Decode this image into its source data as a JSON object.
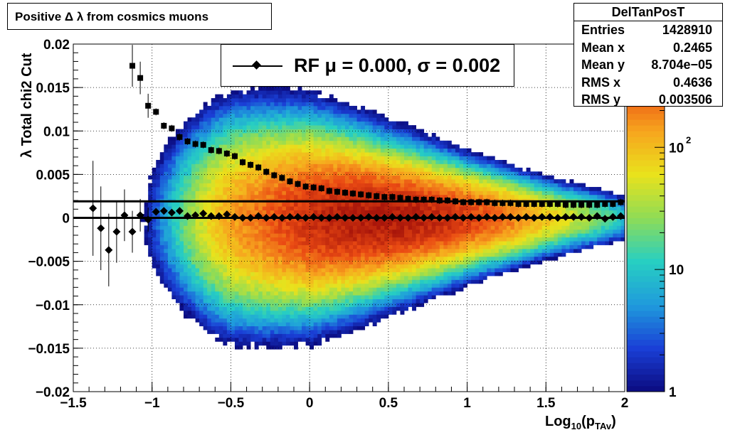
{
  "title": "Positive Δ λ from cosmics muons",
  "stats": {
    "name": "DelTanPosT",
    "rows": [
      {
        "label": "Entries",
        "value": "1428910"
      },
      {
        "label": "Mean x",
        "value": "0.2465"
      },
      {
        "label": "Mean y",
        "value": "8.704e−05"
      },
      {
        "label": "RMS x",
        "value": "0.4636"
      },
      {
        "label": "RMS y",
        "value": "0.003506"
      }
    ]
  },
  "legend": {
    "text": "RF μ =  0.000, σ =   0.002"
  },
  "colors": {
    "accent_black": "#000000",
    "palette": [
      "#0b0b7f",
      "#1a3fd6",
      "#1f9bdc",
      "#27cfc2",
      "#8fdc56",
      "#e9e21c",
      "#f7a51e",
      "#ea4a13",
      "#a8150a"
    ]
  },
  "chart_data": {
    "type": "heatmap",
    "xlabel_main": "Log",
    "xlabel_sub": "10",
    "xlabel_open": "(p",
    "xlabel_sub2": "TAv",
    "xlabel_close": ")",
    "ylabel_sym": "λ",
    "ylabel": "Total chi2 Cut",
    "xlim": [
      -1.5,
      2.0
    ],
    "ylim": [
      -0.02,
      0.02
    ],
    "x_ticks": [
      {
        "value": -1.5,
        "label": "−1.5"
      },
      {
        "value": -1.0,
        "label": "−1"
      },
      {
        "value": -0.5,
        "label": "−0.5"
      },
      {
        "value": 0.0,
        "label": "0"
      },
      {
        "value": 0.5,
        "label": "0.5"
      },
      {
        "value": 1.0,
        "label": "1"
      },
      {
        "value": 1.5,
        "label": "1.5"
      },
      {
        "value": 2.0,
        "label": "2"
      }
    ],
    "y_ticks": [
      {
        "value": 0.02,
        "label": "0.02"
      },
      {
        "value": 0.015,
        "label": "0.015"
      },
      {
        "value": 0.01,
        "label": "0.01"
      },
      {
        "value": 0.005,
        "label": "0.005"
      },
      {
        "value": 0.0,
        "label": "0"
      },
      {
        "value": -0.005,
        "label": "−0.005"
      },
      {
        "value": -0.01,
        "label": "−0.01"
      },
      {
        "value": -0.015,
        "label": "−0.015"
      },
      {
        "value": -0.02,
        "label": "−0.02"
      }
    ],
    "grid": true,
    "colorbar": {
      "scale": "log",
      "range": [
        1,
        700
      ],
      "labels": [
        {
          "value": 1,
          "base": "1",
          "exp": ""
        },
        {
          "value": 10,
          "base": "10",
          "exp": ""
        },
        {
          "value": 100,
          "base": "10",
          "exp": "2"
        }
      ]
    },
    "heatmap_model": {
      "x_peak": 0.45,
      "peak_counts": 650,
      "sigma_at": [
        [
          -1.3,
          0.004
        ],
        [
          -0.5,
          0.0046
        ],
        [
          0.0,
          0.004
        ],
        [
          0.5,
          0.003
        ],
        [
          1.0,
          0.0022
        ],
        [
          1.5,
          0.0016
        ],
        [
          2.0,
          0.0012
        ]
      ]
    },
    "reference_lines": [
      {
        "y": 0.0019,
        "x_from": -1.5,
        "x_to": 2.0
      },
      {
        "y": 0.0,
        "x_from": -1.5,
        "x_to": 2.0
      }
    ],
    "series": [
      {
        "name": "RF",
        "marker": "diamond",
        "x": [
          -1.375,
          -1.325,
          -1.275,
          -1.225,
          -1.175,
          -1.125,
          -1.075,
          -1.025,
          -0.975,
          -0.925,
          -0.875,
          -0.825,
          -0.775,
          -0.725,
          -0.675,
          -0.625,
          -0.575,
          -0.525,
          -0.475,
          -0.425,
          -0.375,
          -0.325,
          -0.275,
          -0.225,
          -0.175,
          -0.125,
          -0.075,
          -0.025,
          0.025,
          0.075,
          0.125,
          0.175,
          0.225,
          0.275,
          0.325,
          0.375,
          0.425,
          0.475,
          0.525,
          0.575,
          0.625,
          0.675,
          0.725,
          0.775,
          0.825,
          0.875,
          0.925,
          0.975,
          1.025,
          1.075,
          1.125,
          1.175,
          1.225,
          1.275,
          1.325,
          1.375,
          1.425,
          1.475,
          1.525,
          1.575,
          1.625,
          1.675,
          1.725,
          1.775,
          1.825,
          1.875,
          1.925,
          1.975
        ],
        "y": [
          0.0011,
          -0.0012,
          -0.0037,
          -0.0016,
          0.0003,
          -0.0016,
          0.0003,
          -0.0002,
          0.0007,
          0.0008,
          0.0006,
          0.0008,
          0.0002,
          0.0003,
          0.0005,
          0.0002,
          0.0002,
          0.0004,
          0.0001,
          0.0,
          0.0,
          0.0002,
          0.0,
          0.0001,
          0.0,
          0.0001,
          0.0001,
          0.0,
          0.0001,
          0.0,
          0.0,
          0.0001,
          0.0,
          0.0,
          0.0,
          0.0001,
          0.0,
          0.0,
          0.0001,
          0.0,
          0.0,
          0.0001,
          0.0,
          0.0001,
          0.0,
          0.0,
          0.0001,
          0.0,
          0.0001,
          0.0,
          0.0001,
          0.0,
          0.0001,
          0.0001,
          0.0,
          0.0001,
          0.0,
          0.0001,
          0.0001,
          0.0,
          0.0001,
          0.0001,
          0.0001,
          0.0,
          0.0002,
          -0.0001,
          0.0001,
          0.0002
        ]
      },
      {
        "name": "",
        "marker": "square",
        "x": [
          -1.125,
          -1.075,
          -1.025,
          -0.975,
          -0.925,
          -0.875,
          -0.825,
          -0.775,
          -0.725,
          -0.675,
          -0.625,
          -0.575,
          -0.525,
          -0.475,
          -0.425,
          -0.375,
          -0.325,
          -0.275,
          -0.225,
          -0.175,
          -0.125,
          -0.075,
          -0.025,
          0.025,
          0.075,
          0.125,
          0.175,
          0.225,
          0.275,
          0.325,
          0.375,
          0.425,
          0.475,
          0.525,
          0.575,
          0.625,
          0.675,
          0.725,
          0.775,
          0.825,
          0.875,
          0.925,
          0.975,
          1.025,
          1.075,
          1.125,
          1.175,
          1.225,
          1.275,
          1.325,
          1.375,
          1.425,
          1.475,
          1.525,
          1.575,
          1.625,
          1.675,
          1.725,
          1.775,
          1.825,
          1.875,
          1.925,
          1.975
        ],
        "y": [
          0.0175,
          0.0161,
          0.0129,
          0.0122,
          0.0106,
          0.0103,
          0.0093,
          0.0088,
          0.0085,
          0.0084,
          0.0078,
          0.0077,
          0.0074,
          0.0071,
          0.0064,
          0.0061,
          0.0058,
          0.0053,
          0.0049,
          0.0046,
          0.0042,
          0.0039,
          0.0036,
          0.0035,
          0.0034,
          0.0031,
          0.003,
          0.0029,
          0.0028,
          0.0027,
          0.0026,
          0.0025,
          0.0024,
          0.0024,
          0.0023,
          0.0022,
          0.0021,
          0.0021,
          0.0021,
          0.002,
          0.002,
          0.0019,
          0.0018,
          0.0018,
          0.0018,
          0.0018,
          0.0017,
          0.0017,
          0.0017,
          0.0016,
          0.0016,
          0.0016,
          0.0016,
          0.0016,
          0.0016,
          0.0015,
          0.0015,
          0.0015,
          0.0015,
          0.0015,
          0.0016,
          0.0016,
          0.0018
        ]
      }
    ]
  }
}
